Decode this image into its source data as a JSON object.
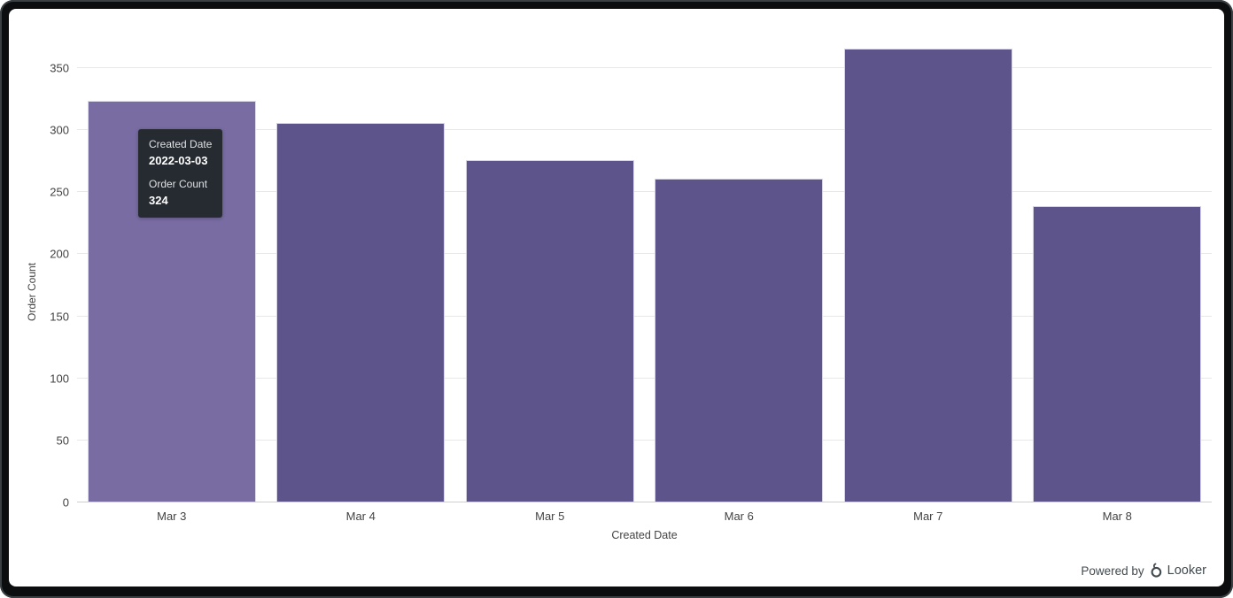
{
  "window": {
    "footer_prefix": "Powered by",
    "brand": "Looker"
  },
  "colors": {
    "bar": "#5E548C",
    "bar_hover": "#786CA2",
    "gridline": "#e8e8e8",
    "axis_line": "#c9cde4",
    "axis_text": "#434343",
    "tooltip_bg": "#262b31",
    "frame": "#0b0d0e"
  },
  "tooltip": {
    "rows": [
      {
        "label": "Created Date",
        "value": "2022-03-03"
      },
      {
        "label": "Order Count",
        "value": "324"
      }
    ],
    "target_category": "Mar 3"
  },
  "chart_data": {
    "type": "bar",
    "title": "",
    "categories": [
      "Mar 3",
      "Mar 4",
      "Mar 5",
      "Mar 6",
      "Mar 7",
      "Mar 8"
    ],
    "values": [
      324,
      306,
      276,
      261,
      366,
      239
    ],
    "xlabel": "Created Date",
    "ylabel": "Order Count",
    "ylim": [
      0,
      380
    ],
    "yticks": [
      0,
      50,
      100,
      150,
      200,
      250,
      300,
      350
    ],
    "grid": true,
    "legend": "none",
    "hovered_index": 0
  }
}
